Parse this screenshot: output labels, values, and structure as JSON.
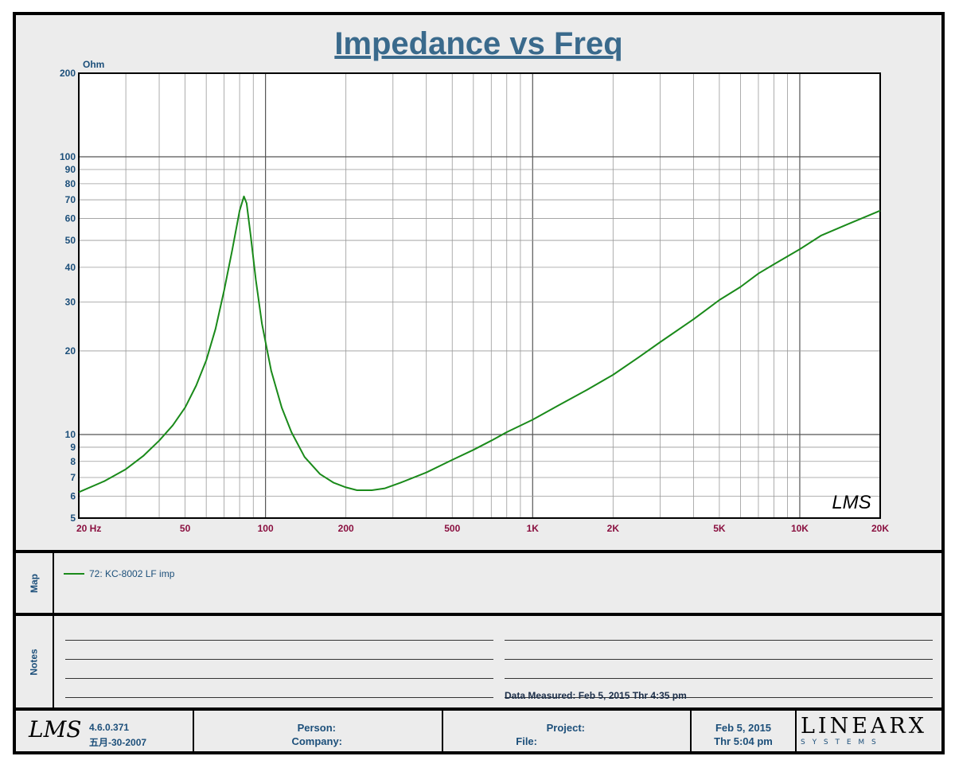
{
  "chart_data": {
    "type": "line",
    "title": "Impedance vs Freq",
    "ylabel": "Ohm",
    "x_scale": "log",
    "y_scale": "log",
    "xlim": [
      20,
      20000
    ],
    "ylim": [
      5,
      200
    ],
    "grid": true,
    "x_ticks": [
      {
        "value": 20,
        "label": "20  Hz"
      },
      {
        "value": 50,
        "label": "50"
      },
      {
        "value": 100,
        "label": "100"
      },
      {
        "value": 200,
        "label": "200"
      },
      {
        "value": 500,
        "label": "500"
      },
      {
        "value": 1000,
        "label": "1K"
      },
      {
        "value": 2000,
        "label": "2K"
      },
      {
        "value": 5000,
        "label": "5K"
      },
      {
        "value": 10000,
        "label": "10K"
      },
      {
        "value": 20000,
        "label": "20K"
      }
    ],
    "y_ticks": [
      {
        "value": 5,
        "label": "5"
      },
      {
        "value": 6,
        "label": "6"
      },
      {
        "value": 7,
        "label": "7"
      },
      {
        "value": 8,
        "label": "8"
      },
      {
        "value": 9,
        "label": "9"
      },
      {
        "value": 10,
        "label": "10"
      },
      {
        "value": 20,
        "label": "20"
      },
      {
        "value": 30,
        "label": "30"
      },
      {
        "value": 40,
        "label": "40"
      },
      {
        "value": 50,
        "label": "50"
      },
      {
        "value": 60,
        "label": "60"
      },
      {
        "value": 70,
        "label": "70"
      },
      {
        "value": 80,
        "label": "80"
      },
      {
        "value": 90,
        "label": "90"
      },
      {
        "value": 100,
        "label": "100"
      },
      {
        "value": 200,
        "label": "200"
      }
    ],
    "series": [
      {
        "name": "72: KC-8002 LF  imp",
        "color": "#1a8a1a",
        "x": [
          20,
          25,
          30,
          35,
          40,
          45,
          50,
          55,
          60,
          65,
          70,
          75,
          80,
          83,
          85,
          88,
          92,
          97,
          105,
          115,
          125,
          140,
          160,
          180,
          200,
          220,
          250,
          280,
          320,
          400,
          500,
          600,
          700,
          800,
          1000,
          1300,
          1600,
          2000,
          2500,
          3000,
          4000,
          5000,
          6000,
          7000,
          8000,
          10000,
          12000,
          15000,
          20000
        ],
        "values": [
          6.2,
          6.8,
          7.5,
          8.4,
          9.5,
          10.8,
          12.5,
          15,
          18.5,
          24,
          33,
          46,
          64,
          72,
          68,
          52,
          36,
          25,
          17,
          12.5,
          10.2,
          8.3,
          7.2,
          6.7,
          6.45,
          6.3,
          6.3,
          6.4,
          6.7,
          7.3,
          8.1,
          8.8,
          9.5,
          10.2,
          11.3,
          13,
          14.5,
          16.4,
          19,
          21.5,
          26,
          30.5,
          34,
          38,
          41,
          46.5,
          52,
          57,
          64
        ]
      }
    ]
  },
  "legend": {
    "entry": "72: KC-8002 LF  imp"
  },
  "rows": {
    "map": "Map",
    "notes": "Notes"
  },
  "notes": {
    "data_measured": "Data Measured: Feb  5, 2015  Thr  4:35 pm"
  },
  "footer": {
    "logo": "LMS",
    "version": "4.6.0.371",
    "build_date": "五月-30-2007",
    "person_label": "Person:",
    "company_label": "Company:",
    "project_label": "Project:",
    "file_label": "File:",
    "date": "Feb  5, 2015",
    "time": "Thr  5:04 pm",
    "brand": "LINEARX",
    "brand_sub": "S  Y  S  T  E  M  S"
  },
  "watermark": "LMS",
  "colors": {
    "axis_text_y": "#1c4f7a",
    "axis_text_x": "#8a1040",
    "title": "#3a6a8c",
    "curve": "#1a8a1a"
  }
}
